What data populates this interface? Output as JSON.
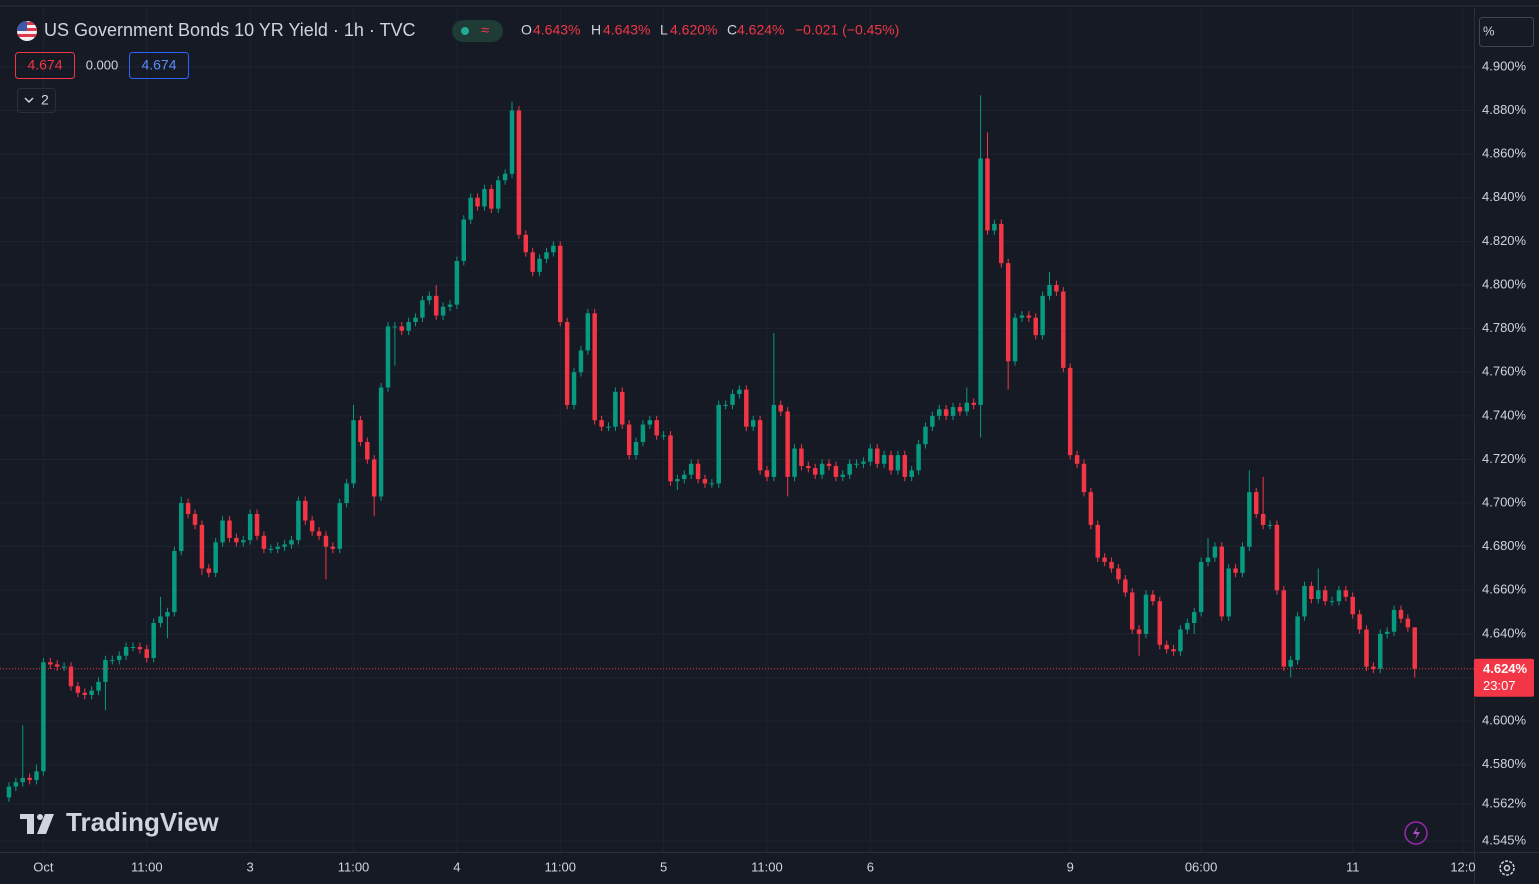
{
  "header": {
    "title": "US Government Bonds 10 YR Yield · 1h · TVC",
    "open_label": "O",
    "open": "4.643%",
    "high_label": "H",
    "high": "4.643%",
    "low_label": "L",
    "low": "4.620%",
    "close_label": "C",
    "close": "4.624%",
    "change": "−0.021 (−0.45%)"
  },
  "toolbar": {
    "bid": "4.674",
    "spread": "0.000",
    "ask": "4.674",
    "indicators_count": "2"
  },
  "price_axis": {
    "unit": "%",
    "last_price": "4.624%",
    "countdown": "23:07"
  },
  "watermark": "TradingView",
  "chart_data": {
    "type": "candlestick",
    "up_color": "#089981",
    "down_color": "#f23645",
    "grid": true,
    "xlim": [
      -1.3,
      212.6
    ],
    "xticks": [
      {
        "value": 5,
        "label": "Oct"
      },
      {
        "value": 20,
        "label": "11:00"
      },
      {
        "value": 35,
        "label": "3"
      },
      {
        "value": 50,
        "label": "11:00"
      },
      {
        "value": 65,
        "label": "4"
      },
      {
        "value": 80,
        "label": "11:00"
      },
      {
        "value": 95,
        "label": "5"
      },
      {
        "value": 110,
        "label": "11:00"
      },
      {
        "value": 125,
        "label": "6"
      },
      {
        "value": 154,
        "label": "9"
      },
      {
        "value": 173,
        "label": "06:00"
      },
      {
        "value": 195,
        "label": "11"
      },
      {
        "value": 211,
        "label": "12:0"
      }
    ],
    "ylim": [
      4.54,
      4.927
    ],
    "yticks": [
      {
        "value": 4.545,
        "label": "4.545%"
      },
      {
        "value": 4.562,
        "label": "4.562%"
      },
      {
        "value": 4.58,
        "label": "4.580%"
      },
      {
        "value": 4.6,
        "label": "4.600%"
      },
      {
        "value": 4.62,
        "label": "4.620%"
      },
      {
        "value": 4.64,
        "label": "4.640%"
      },
      {
        "value": 4.66,
        "label": "4.660%"
      },
      {
        "value": 4.68,
        "label": "4.680%"
      },
      {
        "value": 4.7,
        "label": "4.700%"
      },
      {
        "value": 4.72,
        "label": "4.720%"
      },
      {
        "value": 4.74,
        "label": "4.740%"
      },
      {
        "value": 4.76,
        "label": "4.760%"
      },
      {
        "value": 4.78,
        "label": "4.780%"
      },
      {
        "value": 4.8,
        "label": "4.800%"
      },
      {
        "value": 4.82,
        "label": "4.820%"
      },
      {
        "value": 4.84,
        "label": "4.840%"
      },
      {
        "value": 4.86,
        "label": "4.860%"
      },
      {
        "value": 4.88,
        "label": "4.880%"
      },
      {
        "value": 4.9,
        "label": "4.900%"
      }
    ],
    "open": [
      4.565,
      4.57,
      4.572,
      4.574,
      4.573,
      4.577,
      4.627,
      4.626,
      4.625,
      4.625,
      4.616,
      4.613,
      4.612,
      4.614,
      4.618,
      4.628,
      4.628,
      4.63,
      4.634,
      4.634,
      4.633,
      4.629,
      4.645,
      4.648,
      4.65,
      4.678,
      4.7,
      4.695,
      4.69,
      4.67,
      4.668,
      4.682,
      4.692,
      4.684,
      4.682,
      4.683,
      4.695,
      4.685,
      4.679,
      4.679,
      4.68,
      4.681,
      4.683,
      4.701,
      4.692,
      4.687,
      4.685,
      4.68,
      4.679,
      4.7,
      4.709,
      4.738,
      4.728,
      4.72,
      4.703,
      4.753,
      4.781,
      4.781,
      4.779,
      4.783,
      4.785,
      4.793,
      4.795,
      4.786,
      4.79,
      4.791,
      4.811,
      4.83,
      4.84,
      4.836,
      4.844,
      4.835,
      4.848,
      4.851,
      4.88,
      4.823,
      4.815,
      4.806,
      4.812,
      4.815,
      4.818,
      4.783,
      4.745,
      4.76,
      4.77,
      4.787,
      4.738,
      4.735,
      4.735,
      4.751,
      4.736,
      4.722,
      4.728,
      4.736,
      4.738,
      4.731,
      4.731,
      4.71,
      4.711,
      4.713,
      4.718,
      4.711,
      4.709,
      4.709,
      4.745,
      4.745,
      4.75,
      4.752,
      4.735,
      4.738,
      4.715,
      4.712,
      4.745,
      4.742,
      4.712,
      4.725,
      4.717,
      4.716,
      4.713,
      4.718,
      4.717,
      4.712,
      4.713,
      4.718,
      4.718,
      4.719,
      4.725,
      4.718,
      4.722,
      4.715,
      4.722,
      4.712,
      4.715,
      4.727,
      4.735,
      4.74,
      4.743,
      4.74,
      4.744,
      4.742,
      4.746,
      4.745,
      4.858,
      4.825,
      4.828,
      4.81,
      4.765,
      4.785,
      4.786,
      4.785,
      4.777,
      4.795,
      4.8,
      4.797,
      4.762,
      4.722,
      4.718,
      4.705,
      4.69,
      4.675,
      4.673,
      4.67,
      4.665,
      4.659,
      4.642,
      4.64,
      4.658,
      4.655,
      4.635,
      4.633,
      4.632,
      4.642,
      4.645,
      4.65,
      4.673,
      4.675,
      4.68,
      4.648,
      4.67,
      4.668,
      4.68,
      4.705,
      4.695,
      4.69,
      4.69,
      4.66,
      4.625,
      4.628,
      4.648,
      4.662,
      4.656,
      4.66,
      4.655,
      4.655,
      4.66,
      4.657,
      4.649,
      4.642,
      4.625,
      4.624,
      4.64,
      4.641,
      4.651,
      4.647,
      4.643
    ],
    "high": [
      4.572,
      4.574,
      4.598,
      4.576,
      4.58,
      4.629,
      4.629,
      4.628,
      4.627,
      4.627,
      4.618,
      4.615,
      4.616,
      4.62,
      4.63,
      4.63,
      4.632,
      4.636,
      4.636,
      4.636,
      4.635,
      4.647,
      4.657,
      4.652,
      4.68,
      4.703,
      4.702,
      4.697,
      4.692,
      4.672,
      4.684,
      4.694,
      4.694,
      4.686,
      4.685,
      4.697,
      4.697,
      4.687,
      4.681,
      4.682,
      4.683,
      4.685,
      4.703,
      4.703,
      4.694,
      4.689,
      4.687,
      4.682,
      4.702,
      4.711,
      4.745,
      4.74,
      4.73,
      4.722,
      4.755,
      4.783,
      4.783,
      4.783,
      4.785,
      4.787,
      4.795,
      4.797,
      4.8,
      4.792,
      4.793,
      4.813,
      4.832,
      4.842,
      4.842,
      4.846,
      4.846,
      4.85,
      4.853,
      4.884,
      4.882,
      4.825,
      4.817,
      4.814,
      4.817,
      4.82,
      4.82,
      4.785,
      4.762,
      4.772,
      4.789,
      4.789,
      4.74,
      4.737,
      4.753,
      4.753,
      4.738,
      4.73,
      4.738,
      4.74,
      4.74,
      4.733,
      4.733,
      4.713,
      4.715,
      4.72,
      4.72,
      4.713,
      4.711,
      4.747,
      4.747,
      4.752,
      4.754,
      4.754,
      4.74,
      4.74,
      4.717,
      4.778,
      4.747,
      4.744,
      4.727,
      4.727,
      4.719,
      4.718,
      4.72,
      4.72,
      4.719,
      4.715,
      4.72,
      4.72,
      4.721,
      4.727,
      4.727,
      4.724,
      4.724,
      4.724,
      4.724,
      4.717,
      4.729,
      4.737,
      4.742,
      4.745,
      4.745,
      4.746,
      4.746,
      4.753,
      4.748,
      4.887,
      4.87,
      4.83,
      4.83,
      4.812,
      4.787,
      4.788,
      4.788,
      4.787,
      4.797,
      4.806,
      4.802,
      4.799,
      4.764,
      4.724,
      4.72,
      4.707,
      4.692,
      4.677,
      4.675,
      4.672,
      4.667,
      4.661,
      4.644,
      4.66,
      4.66,
      4.657,
      4.637,
      4.635,
      4.644,
      4.647,
      4.652,
      4.675,
      4.684,
      4.682,
      4.682,
      4.672,
      4.672,
      4.682,
      4.715,
      4.707,
      4.712,
      4.692,
      4.692,
      4.662,
      4.63,
      4.65,
      4.664,
      4.664,
      4.67,
      4.662,
      4.657,
      4.662,
      4.662,
      4.659,
      4.651,
      4.644,
      4.627,
      4.642,
      4.643,
      4.653,
      4.653,
      4.649,
      4.643
    ],
    "low": [
      4.563,
      4.568,
      4.57,
      4.571,
      4.571,
      4.575,
      4.624,
      4.623,
      4.623,
      4.614,
      4.611,
      4.61,
      4.61,
      4.612,
      4.605,
      4.626,
      4.626,
      4.628,
      4.632,
      4.631,
      4.627,
      4.627,
      4.643,
      4.638,
      4.648,
      4.676,
      4.693,
      4.688,
      4.667,
      4.666,
      4.666,
      4.68,
      4.682,
      4.68,
      4.68,
      4.681,
      4.683,
      4.677,
      4.677,
      4.677,
      4.678,
      4.679,
      4.681,
      4.69,
      4.685,
      4.683,
      4.665,
      4.677,
      4.677,
      4.698,
      4.707,
      4.726,
      4.718,
      4.694,
      4.701,
      4.751,
      4.763,
      4.777,
      4.777,
      4.781,
      4.783,
      4.791,
      4.784,
      4.784,
      4.788,
      4.789,
      4.809,
      4.828,
      4.834,
      4.834,
      4.833,
      4.833,
      4.846,
      4.849,
      4.821,
      4.813,
      4.804,
      4.804,
      4.81,
      4.813,
      4.781,
      4.743,
      4.743,
      4.758,
      4.768,
      4.736,
      4.733,
      4.733,
      4.733,
      4.734,
      4.72,
      4.72,
      4.726,
      4.734,
      4.729,
      4.729,
      4.708,
      4.706,
      4.709,
      4.711,
      4.709,
      4.707,
      4.707,
      4.707,
      4.743,
      4.743,
      4.748,
      4.733,
      4.733,
      4.713,
      4.71,
      4.71,
      4.74,
      4.703,
      4.71,
      4.715,
      4.714,
      4.711,
      4.711,
      4.715,
      4.71,
      4.71,
      4.711,
      4.716,
      4.716,
      4.717,
      4.716,
      4.716,
      4.713,
      4.713,
      4.71,
      4.71,
      4.713,
      4.725,
      4.733,
      4.738,
      4.738,
      4.738,
      4.74,
      4.74,
      4.743,
      4.73,
      4.823,
      4.823,
      4.808,
      4.752,
      4.763,
      4.783,
      4.783,
      4.775,
      4.775,
      4.793,
      4.795,
      4.76,
      4.72,
      4.716,
      4.703,
      4.688,
      4.673,
      4.671,
      4.668,
      4.663,
      4.657,
      4.64,
      4.63,
      4.638,
      4.653,
      4.633,
      4.631,
      4.63,
      4.63,
      4.64,
      4.64,
      4.648,
      4.671,
      4.673,
      4.646,
      4.646,
      4.666,
      4.666,
      4.678,
      4.693,
      4.688,
      4.688,
      4.658,
      4.623,
      4.62,
      4.626,
      4.646,
      4.654,
      4.654,
      4.653,
      4.653,
      4.653,
      4.655,
      4.647,
      4.64,
      4.623,
      4.622,
      4.622,
      4.638,
      4.639,
      4.645,
      4.641,
      4.62
    ],
    "close": [
      4.57,
      4.572,
      4.574,
      4.573,
      4.577,
      4.627,
      4.626,
      4.625,
      4.625,
      4.616,
      4.613,
      4.612,
      4.614,
      4.618,
      4.628,
      4.628,
      4.63,
      4.634,
      4.634,
      4.633,
      4.629,
      4.645,
      4.648,
      4.65,
      4.678,
      4.7,
      4.695,
      4.69,
      4.67,
      4.668,
      4.682,
      4.692,
      4.684,
      4.682,
      4.683,
      4.695,
      4.685,
      4.679,
      4.679,
      4.68,
      4.681,
      4.683,
      4.701,
      4.692,
      4.687,
      4.685,
      4.68,
      4.679,
      4.7,
      4.709,
      4.738,
      4.728,
      4.72,
      4.703,
      4.753,
      4.781,
      4.781,
      4.779,
      4.783,
      4.785,
      4.793,
      4.795,
      4.786,
      4.79,
      4.791,
      4.811,
      4.83,
      4.84,
      4.836,
      4.844,
      4.835,
      4.848,
      4.851,
      4.88,
      4.823,
      4.815,
      4.806,
      4.812,
      4.815,
      4.818,
      4.783,
      4.745,
      4.76,
      4.77,
      4.787,
      4.738,
      4.735,
      4.735,
      4.751,
      4.736,
      4.722,
      4.728,
      4.736,
      4.738,
      4.731,
      4.731,
      4.71,
      4.711,
      4.713,
      4.718,
      4.711,
      4.709,
      4.709,
      4.745,
      4.745,
      4.75,
      4.752,
      4.735,
      4.738,
      4.715,
      4.712,
      4.745,
      4.742,
      4.712,
      4.725,
      4.717,
      4.716,
      4.713,
      4.718,
      4.717,
      4.712,
      4.713,
      4.718,
      4.718,
      4.719,
      4.725,
      4.718,
      4.722,
      4.715,
      4.722,
      4.712,
      4.715,
      4.727,
      4.735,
      4.74,
      4.743,
      4.74,
      4.744,
      4.742,
      4.746,
      4.745,
      4.858,
      4.825,
      4.828,
      4.81,
      4.765,
      4.785,
      4.786,
      4.785,
      4.777,
      4.795,
      4.8,
      4.797,
      4.762,
      4.722,
      4.718,
      4.705,
      4.69,
      4.675,
      4.673,
      4.67,
      4.665,
      4.659,
      4.642,
      4.64,
      4.658,
      4.655,
      4.635,
      4.633,
      4.632,
      4.642,
      4.645,
      4.65,
      4.673,
      4.675,
      4.68,
      4.648,
      4.67,
      4.668,
      4.68,
      4.705,
      4.695,
      4.69,
      4.69,
      4.66,
      4.625,
      4.628,
      4.648,
      4.662,
      4.656,
      4.66,
      4.655,
      4.655,
      4.66,
      4.657,
      4.649,
      4.642,
      4.625,
      4.624,
      4.64,
      4.641,
      4.651,
      4.647,
      4.643,
      4.624
    ]
  }
}
